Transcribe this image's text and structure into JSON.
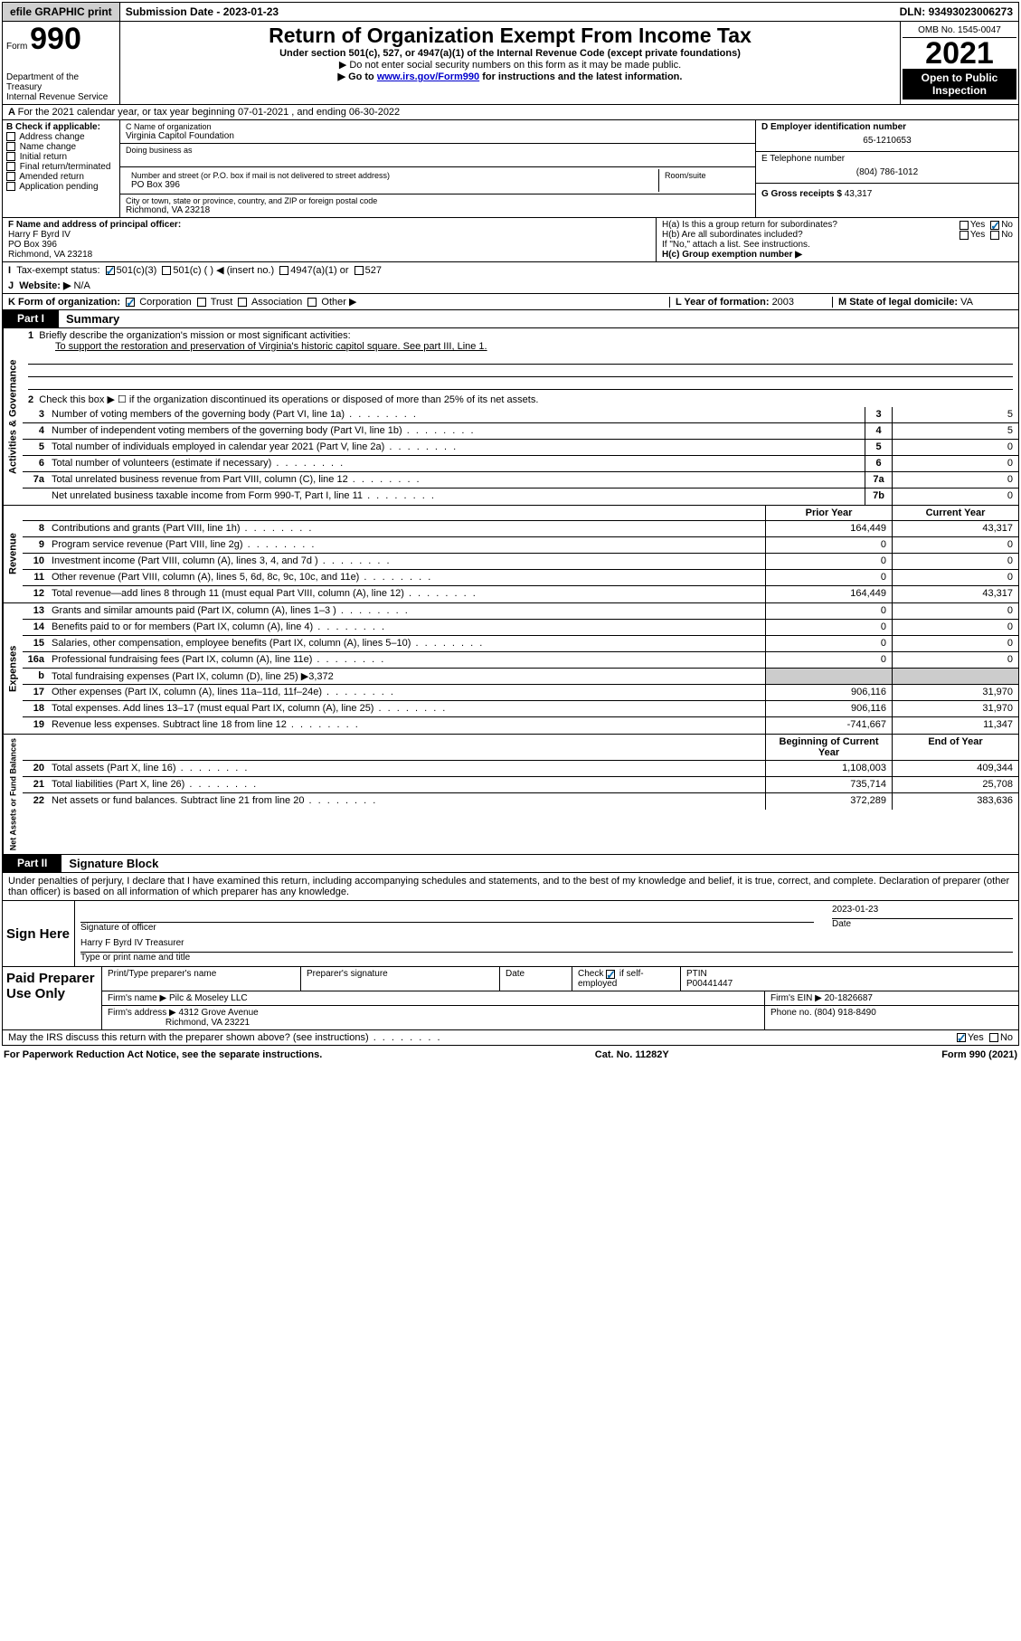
{
  "topbar": {
    "efile": "efile GRAPHIC print",
    "submission_label": "Submission Date - ",
    "submission_date": "2023-01-23",
    "dln_label": "DLN: ",
    "dln": "93493023006273"
  },
  "header": {
    "form_prefix": "Form",
    "form_no": "990",
    "dept": "Department of the Treasury",
    "irs": "Internal Revenue Service",
    "title": "Return of Organization Exempt From Income Tax",
    "sub1": "Under section 501(c), 527, or 4947(a)(1) of the Internal Revenue Code (except private foundations)",
    "sub2": "▶ Do not enter social security numbers on this form as it may be made public.",
    "sub3_pre": "▶ Go to ",
    "sub3_link": "www.irs.gov/Form990",
    "sub3_post": " for instructions and the latest information.",
    "omb": "OMB No. 1545-0047",
    "year": "2021",
    "open": "Open to Public Inspection"
  },
  "row_a": "For the 2021 calendar year, or tax year beginning 07-01-2021   , and ending 06-30-2022",
  "col_b": {
    "hdr": "B Check if applicable:",
    "items": [
      "Address change",
      "Name change",
      "Initial return",
      "Final return/terminated",
      "Amended return",
      "Application pending"
    ]
  },
  "org": {
    "name_lbl": "C Name of organization",
    "name": "Virginia Capitol Foundation",
    "dba_lbl": "Doing business as",
    "addr_lbl": "Number and street (or P.O. box if mail is not delivered to street address)",
    "room_lbl": "Room/suite",
    "addr": "PO Box 396",
    "city_lbl": "City or town, state or province, country, and ZIP or foreign postal code",
    "city": "Richmond, VA  23218"
  },
  "col_d": {
    "ein_lbl": "D Employer identification number",
    "ein": "65-1210653",
    "tel_lbl": "E Telephone number",
    "tel": "(804) 786-1012",
    "gross_lbl": "G Gross receipts $ ",
    "gross": "43,317"
  },
  "officer": {
    "lbl": "F  Name and address of principal officer:",
    "name": "Harry F Byrd IV",
    "addr": "PO Box 396",
    "city": "Richmond, VA  23218"
  },
  "h": {
    "a": "H(a)  Is this a group return for subordinates?",
    "b": "H(b)  Are all subordinates included?",
    "note": "If \"No,\" attach a list. See instructions.",
    "c": "H(c)  Group exemption number ▶"
  },
  "tax_status": {
    "lbl": "Tax-exempt status:",
    "opts": [
      "501(c)(3)",
      "501(c) (  ) ◀ (insert no.)",
      "4947(a)(1) or",
      "527"
    ]
  },
  "website": {
    "lbl": "Website: ▶",
    "val": "N/A"
  },
  "k": {
    "lbl": "K Form of organization:",
    "opts": [
      "Corporation",
      "Trust",
      "Association",
      "Other ▶"
    ]
  },
  "l": {
    "lbl": "L Year of formation: ",
    "val": "2003"
  },
  "m": {
    "lbl": "M State of legal domicile: ",
    "val": "VA"
  },
  "part1": {
    "no": "Part I",
    "title": "Summary"
  },
  "summary": {
    "line1_lbl": "Briefly describe the organization's mission or most significant activities:",
    "line1_txt": "To support the restoration and preservation of Virginia's historic capitol square. See part III, Line 1.",
    "line2": "Check this box ▶ ☐  if the organization discontinued its operations or disposed of more than 25% of its net assets.",
    "gov_lines": [
      {
        "n": "3",
        "d": "Number of voting members of the governing body (Part VI, line 1a)",
        "b": "3",
        "v": "5"
      },
      {
        "n": "4",
        "d": "Number of independent voting members of the governing body (Part VI, line 1b)",
        "b": "4",
        "v": "5"
      },
      {
        "n": "5",
        "d": "Total number of individuals employed in calendar year 2021 (Part V, line 2a)",
        "b": "5",
        "v": "0"
      },
      {
        "n": "6",
        "d": "Total number of volunteers (estimate if necessary)",
        "b": "6",
        "v": "0"
      },
      {
        "n": "7a",
        "d": "Total unrelated business revenue from Part VIII, column (C), line 12",
        "b": "7a",
        "v": "0"
      },
      {
        "n": "",
        "d": "Net unrelated business taxable income from Form 990-T, Part I, line 11",
        "b": "7b",
        "v": "0"
      }
    ],
    "prior_hdr": "Prior Year",
    "curr_hdr": "Current Year",
    "rev_lines": [
      {
        "n": "8",
        "d": "Contributions and grants (Part VIII, line 1h)",
        "p": "164,449",
        "c": "43,317"
      },
      {
        "n": "9",
        "d": "Program service revenue (Part VIII, line 2g)",
        "p": "0",
        "c": "0"
      },
      {
        "n": "10",
        "d": "Investment income (Part VIII, column (A), lines 3, 4, and 7d )",
        "p": "0",
        "c": "0"
      },
      {
        "n": "11",
        "d": "Other revenue (Part VIII, column (A), lines 5, 6d, 8c, 9c, 10c, and 11e)",
        "p": "0",
        "c": "0"
      },
      {
        "n": "12",
        "d": "Total revenue—add lines 8 through 11 (must equal Part VIII, column (A), line 12)",
        "p": "164,449",
        "c": "43,317"
      }
    ],
    "exp_lines": [
      {
        "n": "13",
        "d": "Grants and similar amounts paid (Part IX, column (A), lines 1–3 )",
        "p": "0",
        "c": "0"
      },
      {
        "n": "14",
        "d": "Benefits paid to or for members (Part IX, column (A), line 4)",
        "p": "0",
        "c": "0"
      },
      {
        "n": "15",
        "d": "Salaries, other compensation, employee benefits (Part IX, column (A), lines 5–10)",
        "p": "0",
        "c": "0"
      },
      {
        "n": "16a",
        "d": "Professional fundraising fees (Part IX, column (A), line 11e)",
        "p": "0",
        "c": "0"
      },
      {
        "n": "b",
        "d": "Total fundraising expenses (Part IX, column (D), line 25) ▶3,372",
        "p": "",
        "c": "",
        "shade": true
      },
      {
        "n": "17",
        "d": "Other expenses (Part IX, column (A), lines 11a–11d, 11f–24e)",
        "p": "906,116",
        "c": "31,970"
      },
      {
        "n": "18",
        "d": "Total expenses. Add lines 13–17 (must equal Part IX, column (A), line 25)",
        "p": "906,116",
        "c": "31,970"
      },
      {
        "n": "19",
        "d": "Revenue less expenses. Subtract line 18 from line 12",
        "p": "-741,667",
        "c": "11,347"
      }
    ],
    "net_hdr1": "Beginning of Current Year",
    "net_hdr2": "End of Year",
    "net_lines": [
      {
        "n": "20",
        "d": "Total assets (Part X, line 16)",
        "p": "1,108,003",
        "c": "409,344"
      },
      {
        "n": "21",
        "d": "Total liabilities (Part X, line 26)",
        "p": "735,714",
        "c": "25,708"
      },
      {
        "n": "22",
        "d": "Net assets or fund balances. Subtract line 21 from line 20",
        "p": "372,289",
        "c": "383,636"
      }
    ]
  },
  "part2": {
    "no": "Part II",
    "title": "Signature Block"
  },
  "sig": {
    "decl": "Under penalties of perjury, I declare that I have examined this return, including accompanying schedules and statements, and to the best of my knowledge and belief, it is true, correct, and complete. Declaration of preparer (other than officer) is based on all information of which preparer has any knowledge.",
    "sign_here": "Sign Here",
    "sig_off": "Signature of officer",
    "date_lbl": "Date",
    "date": "2023-01-23",
    "name": "Harry F Byrd IV Treasurer",
    "name_lbl": "Type or print name and title"
  },
  "prep": {
    "title": "Paid Preparer Use Only",
    "r1": {
      "c1": "Print/Type preparer's name",
      "c2": "Preparer's signature",
      "c3": "Date",
      "c4": "Check ☑ if self-employed",
      "c5_lbl": "PTIN",
      "c5": "P00441447"
    },
    "r2": {
      "c1_lbl": "Firm's name    ▶ ",
      "c1": "Pilc & Moseley LLC",
      "c2_lbl": "Firm's EIN ▶ ",
      "c2": "20-1826687"
    },
    "r3": {
      "c1_lbl": "Firm's address ▶ ",
      "c1": "4312 Grove Avenue",
      "c1b": "Richmond, VA  23221",
      "c2_lbl": "Phone no. ",
      "c2": "(804) 918-8490"
    }
  },
  "may_irs": "May the IRS discuss this return with the preparer shown above? (see instructions)",
  "footer": {
    "l": "For Paperwork Reduction Act Notice, see the separate instructions.",
    "c": "Cat. No. 11282Y",
    "r": "Form 990 (2021)"
  },
  "yes": "Yes",
  "no": "No"
}
